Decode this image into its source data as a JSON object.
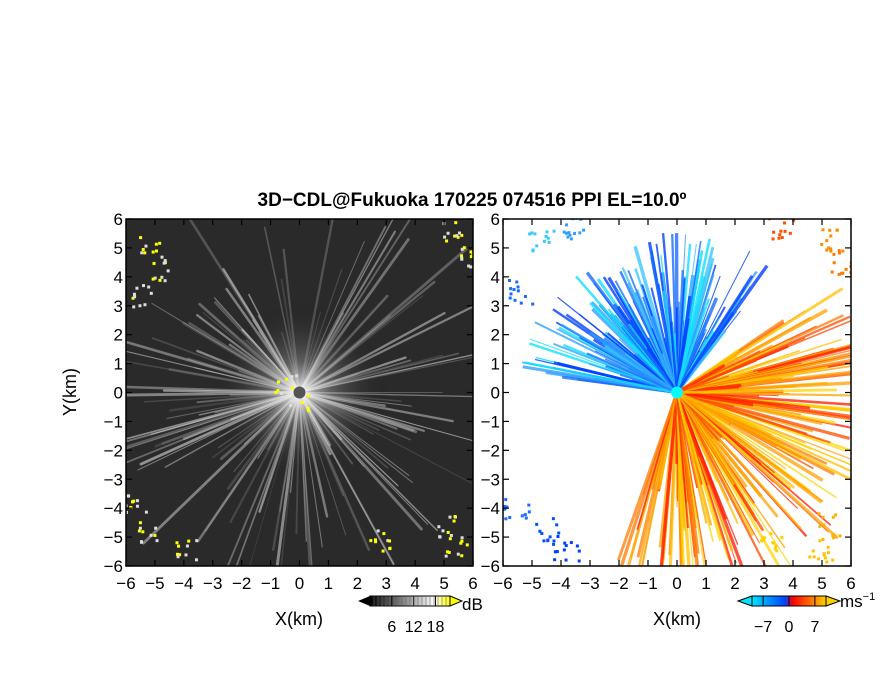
{
  "title": "3D−CDL@Fukuoka 170225 074516 PPI EL=10.0º",
  "chart_data": [
    {
      "type": "heatmap",
      "panel": "left",
      "quantity_legend_unit": "dB",
      "xlabel": "X(km)",
      "ylabel": "Y(km)",
      "xlim": [
        -6,
        6
      ],
      "ylim": [
        -6,
        6
      ],
      "xticks": [
        "−6",
        "−5",
        "−4",
        "−3",
        "−2",
        "−1",
        "0",
        "1",
        "2",
        "3",
        "4",
        "5",
        "6"
      ],
      "yticks": [
        "−6",
        "−5",
        "−4",
        "−3",
        "−2",
        "−1",
        "0",
        "1",
        "2",
        "3",
        "4",
        "5",
        "6"
      ],
      "colorbar": {
        "ticks": [
          "6",
          "12",
          "18"
        ],
        "tick_values": [
          6,
          12,
          18
        ],
        "range": [
          0,
          22
        ],
        "unit": "dB",
        "colors": [
          "#000000",
          "#ffffff",
          "#ffff00"
        ]
      },
      "colors": {
        "background": "#2a2a2a",
        "rays": "#e6e6e6",
        "highlight": "#ffff00"
      }
    },
    {
      "type": "heatmap",
      "panel": "right",
      "xlabel": "X(km)",
      "ylabel": "",
      "xlim": [
        -6,
        6
      ],
      "ylim": [
        -6,
        6
      ],
      "xticks": [
        "−6",
        "−5",
        "−4",
        "−3",
        "−2",
        "−1",
        "0",
        "1",
        "2",
        "3",
        "4",
        "5",
        "6"
      ],
      "yticks": [
        "−6",
        "−5",
        "−4",
        "−3",
        "−2",
        "−1",
        "0",
        "1",
        "2",
        "3",
        "4",
        "5",
        "6"
      ],
      "colorbar": {
        "ticks": [
          "−7",
          "0",
          "7"
        ],
        "tick_values": [
          -7,
          0,
          7
        ],
        "range": [
          -10,
          10
        ],
        "unit_base": "ms",
        "unit_exp": "−1",
        "colors": [
          "#00e5ff",
          "#0040ff",
          "#ff0000",
          "#ffd000"
        ]
      },
      "colors": {
        "negative": "#0050ff",
        "positive": "#ff6000",
        "center": "#00ffff"
      }
    }
  ]
}
